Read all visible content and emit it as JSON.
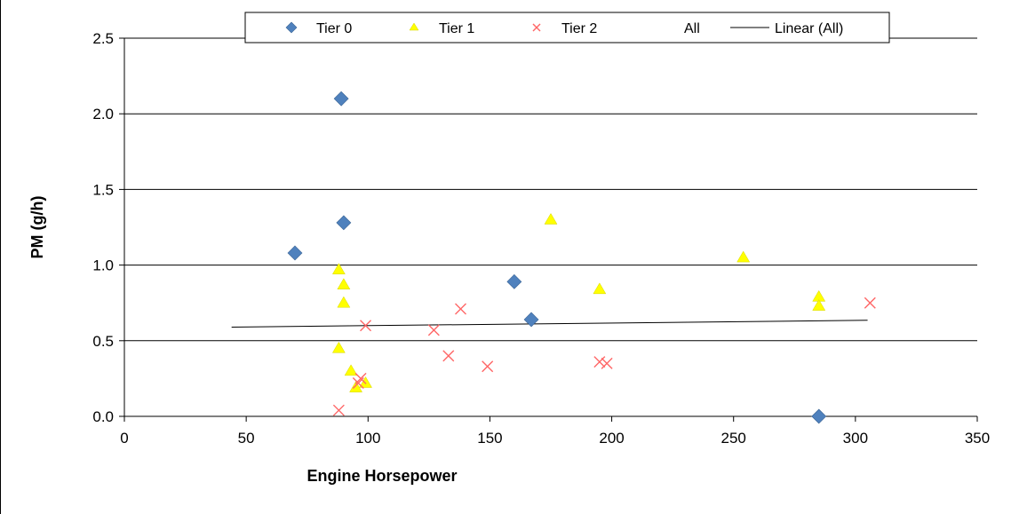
{
  "chart_data": {
    "type": "scatter",
    "title": "",
    "xlabel": "Engine Horsepower",
    "ylabel": "PM (g/h)",
    "xlim": [
      0,
      350
    ],
    "ylim": [
      0,
      2.5
    ],
    "x_ticks": [
      "0",
      "50",
      "100",
      "150",
      "200",
      "250",
      "300",
      "350"
    ],
    "y_ticks": [
      "0.0",
      "0.5",
      "1.0",
      "1.5",
      "2.0",
      "2.5"
    ],
    "x_tick_values": [
      0,
      50,
      100,
      150,
      200,
      250,
      300,
      350
    ],
    "y_tick_values": [
      0,
      0.5,
      1.0,
      1.5,
      2.0,
      2.5
    ],
    "grid": "horizontal",
    "legend_position": "top",
    "series": [
      {
        "name": "Tier 0",
        "marker": "diamond",
        "color": "#4F81BD",
        "points": [
          {
            "x": 89,
            "y": 2.1
          },
          {
            "x": 90,
            "y": 1.28
          },
          {
            "x": 70,
            "y": 1.08
          },
          {
            "x": 160,
            "y": 0.89
          },
          {
            "x": 167,
            "y": 0.64
          },
          {
            "x": 285,
            "y": 0.0
          }
        ]
      },
      {
        "name": "Tier 1",
        "marker": "triangle",
        "color": "#FFFF00",
        "points": [
          {
            "x": 175,
            "y": 1.3
          },
          {
            "x": 254,
            "y": 1.05
          },
          {
            "x": 88,
            "y": 0.97
          },
          {
            "x": 90,
            "y": 0.87
          },
          {
            "x": 90,
            "y": 0.75
          },
          {
            "x": 195,
            "y": 0.84
          },
          {
            "x": 285,
            "y": 0.79
          },
          {
            "x": 285,
            "y": 0.73
          },
          {
            "x": 88,
            "y": 0.45
          },
          {
            "x": 93,
            "y": 0.3
          },
          {
            "x": 95,
            "y": 0.19
          },
          {
            "x": 99,
            "y": 0.22
          }
        ]
      },
      {
        "name": "Tier 2",
        "marker": "x",
        "color": "#FF6666",
        "points": [
          {
            "x": 99,
            "y": 0.6
          },
          {
            "x": 138,
            "y": 0.71
          },
          {
            "x": 127,
            "y": 0.57
          },
          {
            "x": 306,
            "y": 0.75
          },
          {
            "x": 133,
            "y": 0.4
          },
          {
            "x": 149,
            "y": 0.33
          },
          {
            "x": 195,
            "y": 0.36
          },
          {
            "x": 198,
            "y": 0.35
          },
          {
            "x": 96,
            "y": 0.22
          },
          {
            "x": 97,
            "y": 0.25
          },
          {
            "x": 88,
            "y": 0.04
          }
        ]
      },
      {
        "name": "All",
        "marker": "none",
        "color": "#000000",
        "points": []
      }
    ],
    "trendline": {
      "name": "Linear (All)",
      "color": "#000000",
      "points": [
        {
          "x": 44,
          "y": 0.59
        },
        {
          "x": 305,
          "y": 0.635
        }
      ]
    }
  }
}
